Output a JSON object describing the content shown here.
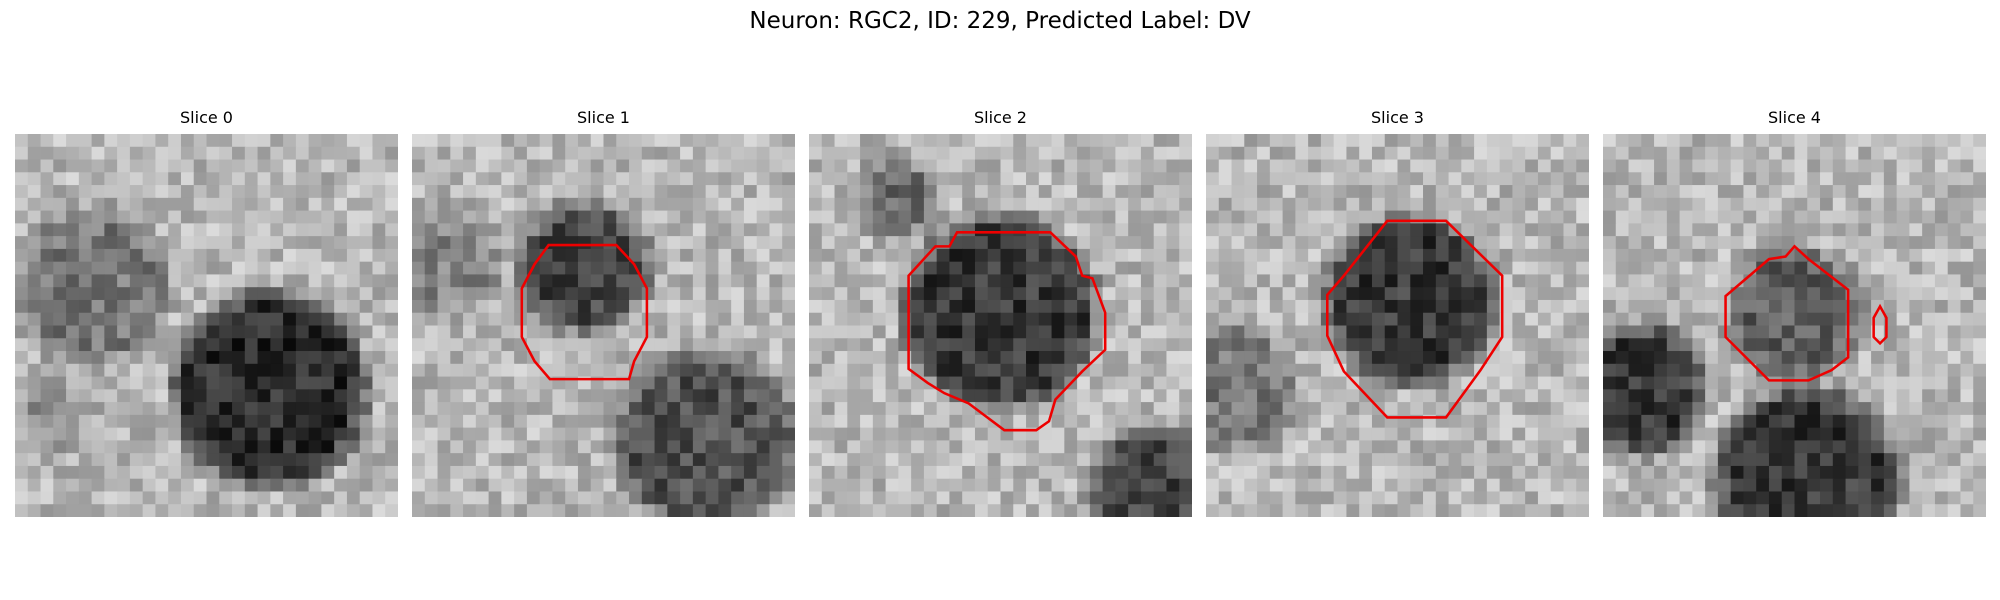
{
  "title": "Neuron: RGC2, ID: 229, Predicted Label: DV",
  "panels": [
    {
      "title": "Slice 0"
    },
    {
      "title": "Slice 1"
    },
    {
      "title": "Slice 2"
    },
    {
      "title": "Slice 3"
    },
    {
      "title": "Slice 4"
    }
  ]
}
